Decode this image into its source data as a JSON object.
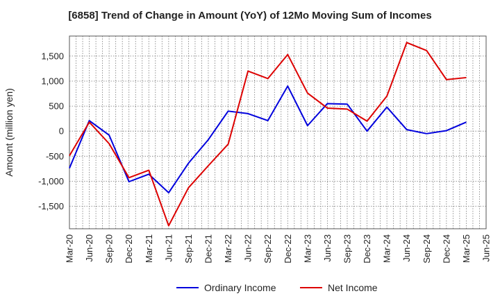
{
  "chart_data": {
    "type": "line",
    "title": "[6858]  Trend of Change in Amount (YoY) of 12Mo Moving Sum of Incomes",
    "ylabel": "Amount (million yen)",
    "xlabel": "",
    "ylim": [
      -1950,
      1900
    ],
    "yticks": [
      -1500,
      -1000,
      -500,
      0,
      500,
      1000,
      1500
    ],
    "ytick_labels": [
      "-1,500",
      "-1,000",
      "-500",
      "0",
      "500",
      "1,000",
      "1,500"
    ],
    "x": [
      "Mar-20",
      "Jun-20",
      "Sep-20",
      "Dec-20",
      "Mar-21",
      "Jun-21",
      "Sep-21",
      "Dec-21",
      "Mar-22",
      "Jun-22",
      "Sep-22",
      "Dec-22",
      "Mar-23",
      "Jun-23",
      "Sep-23",
      "Dec-23",
      "Mar-24",
      "Jun-24",
      "Sep-24",
      "Dec-24",
      "Mar-25",
      "Jun-25"
    ],
    "grid": true,
    "legend": "bottom-center",
    "series": [
      {
        "name": "Ordinary Income",
        "color": "#0000dd",
        "values": [
          -740,
          210,
          -80,
          -1010,
          -860,
          -1230,
          -640,
          -170,
          400,
          350,
          210,
          900,
          110,
          550,
          540,
          0,
          480,
          30,
          -50,
          10,
          180,
          null
        ]
      },
      {
        "name": "Net Income",
        "color": "#dd0000",
        "values": [
          -490,
          180,
          -250,
          -930,
          -780,
          -1890,
          -1130,
          -690,
          -260,
          1200,
          1050,
          1530,
          760,
          460,
          440,
          200,
          700,
          1770,
          1610,
          1030,
          1070,
          null
        ]
      }
    ]
  }
}
